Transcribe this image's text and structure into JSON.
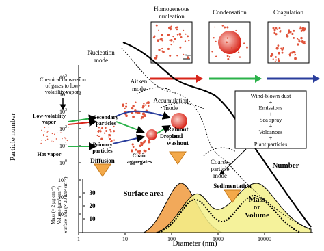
{
  "panels": [
    {
      "title": [
        "Homogeneous",
        "nucleation"
      ],
      "scale": "1 µm"
    },
    {
      "title": [
        "Condensation"
      ]
    },
    {
      "title": [
        "Coagulation"
      ]
    }
  ],
  "modes": {
    "nucleation": [
      "Nucleation",
      "mode"
    ],
    "aitken": [
      "Aitken",
      "mode"
    ],
    "accumulation": [
      "Accumulation",
      "mode"
    ],
    "coarse": [
      "Coarse-",
      "particle",
      "mode"
    ]
  },
  "processes": {
    "chemical": [
      "Chemical conversion",
      "of gases to low-",
      "volatility vapors"
    ],
    "low_vapor": [
      "Low-volatility",
      "vapor"
    ],
    "hot_vapor": "Hot vapor",
    "secondary": [
      "Secondary",
      "particles"
    ],
    "primary": [
      "Primary",
      "particles"
    ],
    "chain": [
      "Chain",
      "aggregates"
    ],
    "droplets": "Droplets",
    "diffusion": "Diffusion",
    "rainout": [
      "Rainout",
      "and",
      "washout"
    ],
    "sedimentation": "Sedimentation"
  },
  "sources": [
    "Wind-blown dust",
    "+",
    "Emissions",
    "+",
    "Sea spray",
    "+",
    "Volcanoes",
    "+",
    "Plant particles"
  ],
  "curves": {
    "number": "Number",
    "surface": "Surface area",
    "mass": [
      "Mass",
      "or",
      "Volume"
    ]
  },
  "axes": {
    "y_label": "Particle number",
    "y_ticks": [
      {
        "base": "10",
        "exp": "5"
      },
      {
        "base": "10",
        "exp": "4"
      },
      {
        "base": "10",
        "exp": "3"
      },
      {
        "base": "10",
        "exp": "2"
      },
      {
        "base": "10",
        "exp": "1"
      },
      {
        "base": "10",
        "exp": "0"
      },
      {
        "base": "10",
        "exp": "-1"
      },
      {
        "base": "10",
        "exp": "-2"
      },
      {
        "base": "10",
        "exp": "-3"
      }
    ],
    "x_label": "Diameter (nm)",
    "x_ticks": [
      "1",
      "10",
      "100",
      "1000",
      "10000"
    ],
    "inset_y_labels": [
      "Mass (× 2 µg cm⁻³)",
      "Volume (µm³ cm⁻³)",
      "Surface area (× 20 nm² cm⁻³)"
    ],
    "inset_y_ticks": [
      "10",
      "20",
      "30"
    ]
  }
}
